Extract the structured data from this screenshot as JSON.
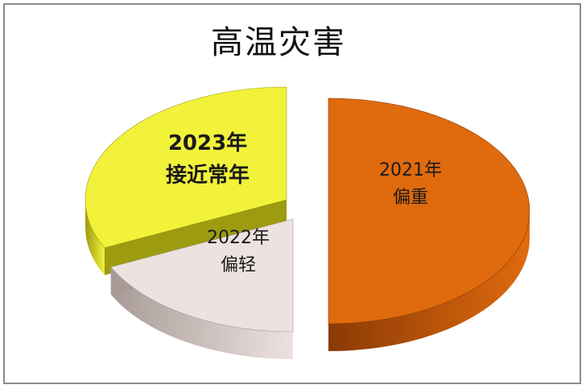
{
  "chart_data": {
    "type": "pie",
    "title": "高温灾害",
    "slices": [
      {
        "name": "2021年",
        "note": "偏重",
        "value": 50,
        "color": "#e06a0e",
        "side": "#8a3a05",
        "bold": false
      },
      {
        "name": "2022年",
        "note": "偏轻",
        "value": 18,
        "color": "#ece2df",
        "side": "#a89b97",
        "bold": false
      },
      {
        "name": "2023年",
        "note": "接近常年",
        "value": 32,
        "color": "#f2f23a",
        "side": "#9d9b10",
        "bold": true
      }
    ],
    "legend": "none",
    "exploded": true,
    "three_d": true
  }
}
